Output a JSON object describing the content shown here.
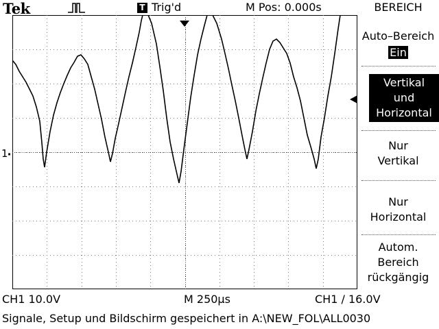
{
  "header": {
    "brand": "Tek",
    "trigger_status": "Trig'd",
    "trigger_box": "T",
    "m_pos": "M Pos: 0.000s"
  },
  "menu": {
    "title": "BEREICH",
    "items": [
      {
        "lines": [
          "Auto–Bereich"
        ],
        "value": "Ein"
      },
      {
        "lines": [
          "Vertikal",
          "und",
          "Horizontal"
        ],
        "selected": true
      },
      {
        "lines": [
          "Nur",
          "Vertikal"
        ]
      },
      {
        "lines": [
          "Nur",
          "Horizontal"
        ]
      },
      {
        "lines": [
          "Autom.",
          "Bereich",
          "rückgängig"
        ]
      }
    ]
  },
  "screen": {
    "ch1_marker": "1",
    "grid_divisions": {
      "x": 10,
      "y": 8
    }
  },
  "status": {
    "ch1_scale": "CH1  10.0V",
    "timebase": "M 250µs",
    "trigger": "CH1  ∕  16.0V",
    "message": "Signale, Setup und Bildschirm gespeichert in A:\\NEW_FOL\\ALL0030"
  },
  "colors": {
    "background": "#ffffff",
    "foreground": "#000000"
  }
}
